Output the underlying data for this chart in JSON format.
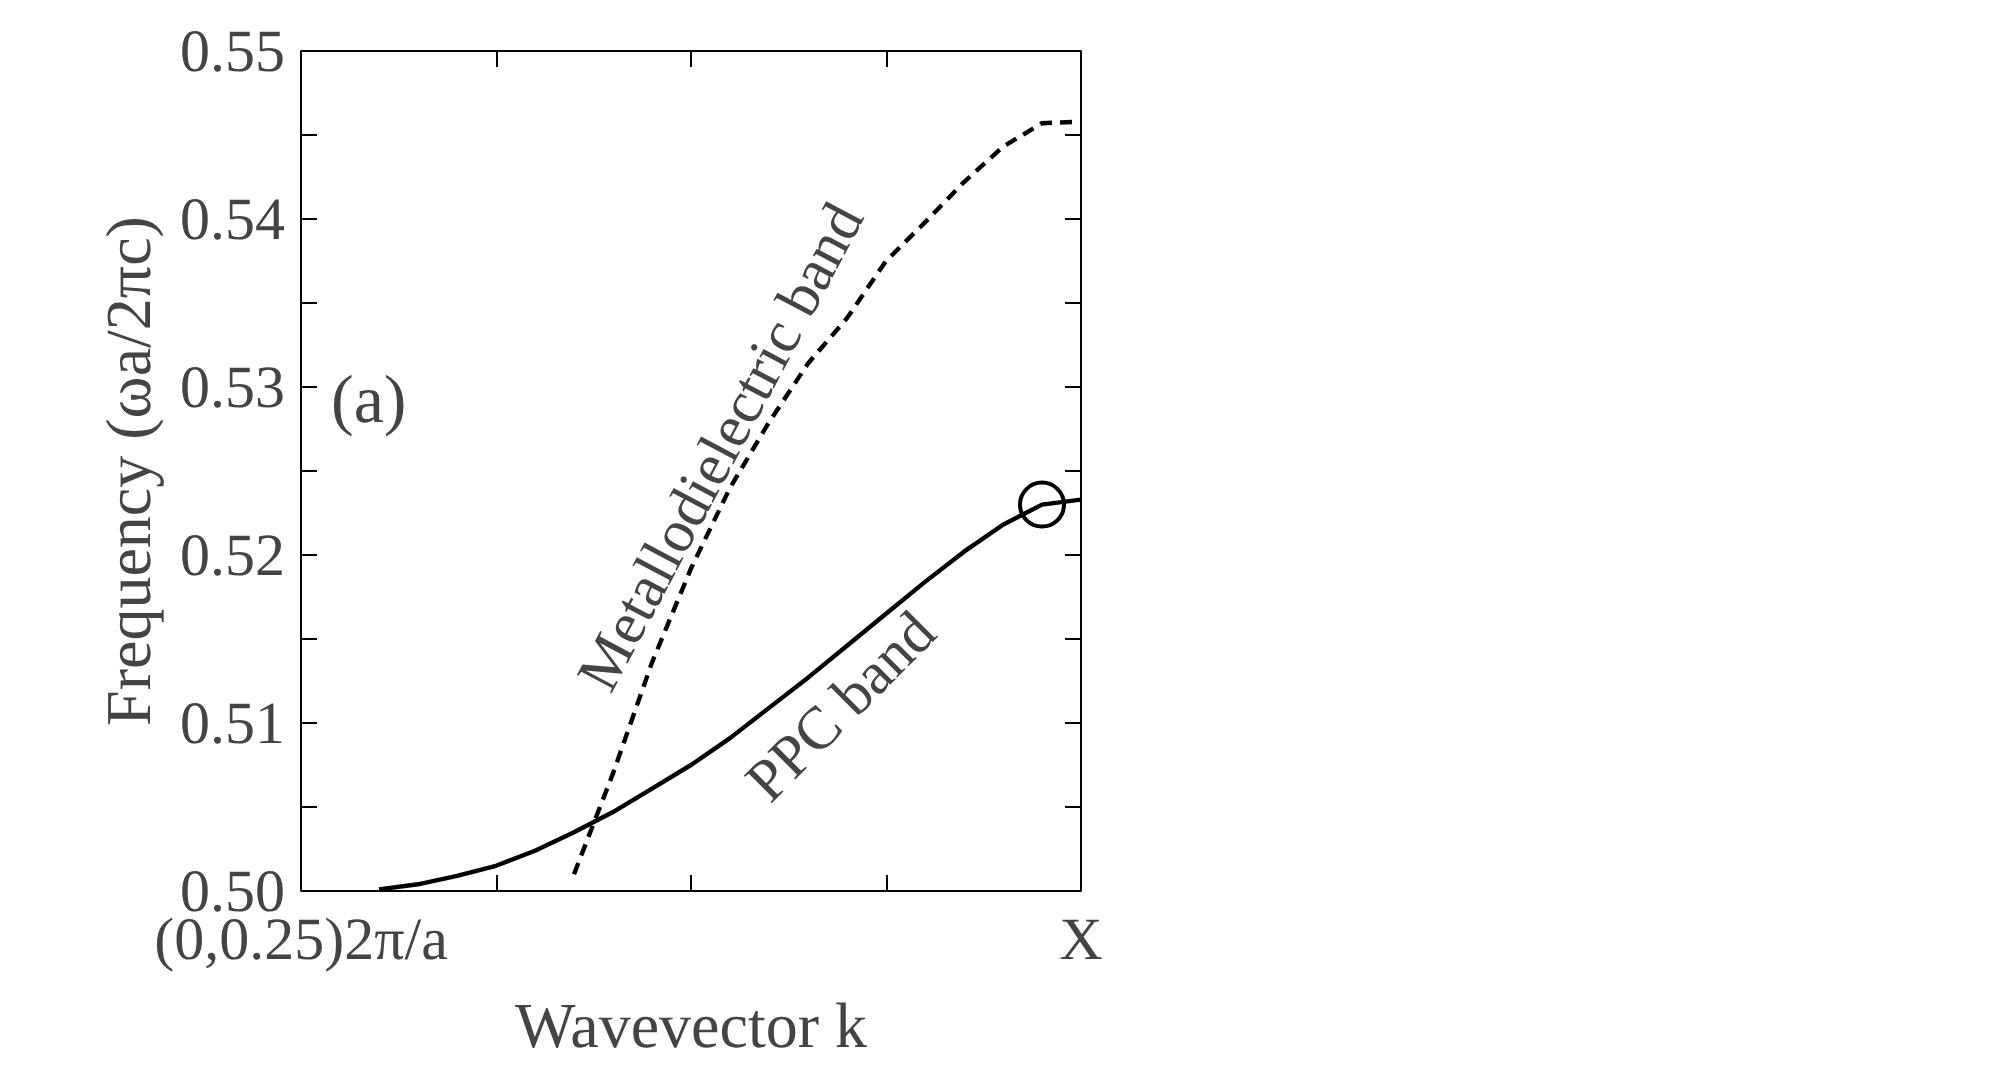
{
  "chart_data": {
    "type": "line",
    "xlabel": "Wavevector k",
    "ylabel": "Frequency (ωa/2πc)",
    "categories": [
      "(0,0.25)2π/a",
      null,
      null,
      null,
      null,
      null,
      null,
      null,
      null,
      null,
      null,
      null,
      null,
      null,
      null,
      null,
      null,
      null,
      null,
      null,
      "X"
    ],
    "ylim": [
      0.5,
      0.55
    ],
    "yticks": [
      {
        "value": 0.5,
        "label": "0.50"
      },
      {
        "value": 0.505,
        "label": null
      },
      {
        "value": 0.51,
        "label": "0.51"
      },
      {
        "value": 0.515,
        "label": null
      },
      {
        "value": 0.52,
        "label": "0.52"
      },
      {
        "value": 0.525,
        "label": null
      },
      {
        "value": 0.53,
        "label": "0.53"
      },
      {
        "value": 0.535,
        "label": null
      },
      {
        "value": 0.54,
        "label": "0.54"
      },
      {
        "value": 0.545,
        "label": null
      },
      {
        "value": 0.55,
        "label": "0.55"
      }
    ],
    "grid": false,
    "series": [
      {
        "color": "#000000",
        "line_style": "solid",
        "values": [
          null,
          null,
          0.5001,
          0.5004,
          0.5009,
          0.5015,
          0.5024,
          0.5035,
          0.5047,
          0.5061,
          0.5075,
          0.5091,
          0.5109,
          0.5127,
          0.5146,
          0.5165,
          0.5184,
          0.5202,
          0.5218,
          0.523,
          0.5233
        ]
      },
      {
        "color": "#000000",
        "line_style": "dashed",
        "values": [
          null,
          null,
          null,
          null,
          null,
          null,
          null,
          0.501,
          0.507,
          0.5136,
          0.5192,
          0.524,
          0.5279,
          0.5314,
          0.5341,
          0.5375,
          0.5398,
          0.5422,
          0.5443,
          0.5457,
          0.5458
        ]
      },
      {
        "type": "scatter",
        "marker": "circle",
        "color": "#000000",
        "values": [
          null,
          null,
          null,
          null,
          null,
          null,
          null,
          null,
          null,
          null,
          null,
          null,
          null,
          null,
          null,
          null,
          null,
          null,
          null,
          0.523,
          null
        ]
      }
    ],
    "annotations": [
      "(a)",
      "Metallodielectric band",
      "PPC band"
    ]
  }
}
